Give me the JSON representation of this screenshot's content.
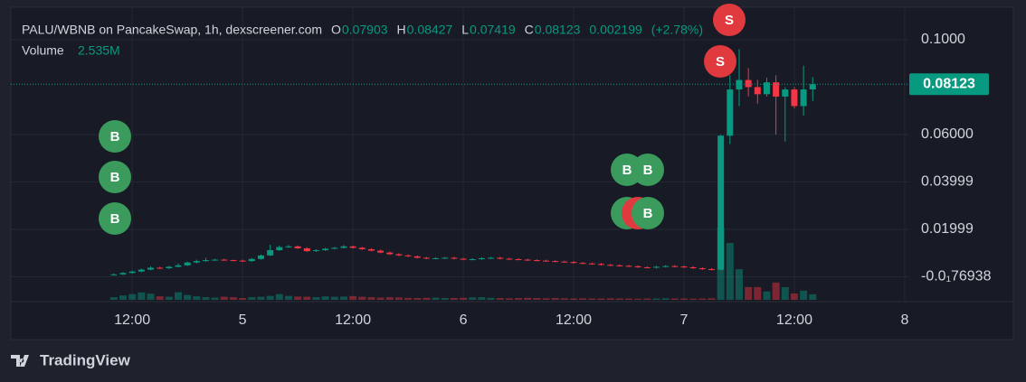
{
  "chart_data": {
    "type": "candlestick",
    "title": "PALU/WBNB on PancakeSwap, 1h, dexscreener.com",
    "ohlc_letters": [
      "O",
      "H",
      "L",
      "C"
    ],
    "change": 0.002199,
    "change_pct_label": "(+2.78%)",
    "up_color": "#089981",
    "down_color": "#f23645",
    "x": [
      -14,
      -13,
      -12,
      -11,
      -10,
      -9,
      -8,
      -7,
      -6,
      -5,
      -4,
      -3,
      -2,
      -1,
      0,
      1,
      2,
      3,
      4,
      5,
      6,
      7,
      8,
      9,
      10,
      11,
      12,
      13,
      14,
      15,
      16,
      17,
      18,
      19,
      20,
      21,
      22,
      23,
      24,
      25,
      26,
      27,
      28,
      29,
      30,
      31,
      32,
      33,
      34,
      35,
      36,
      37,
      38,
      39,
      40,
      41,
      42,
      43,
      44,
      45,
      46,
      47,
      48,
      49,
      50,
      51,
      52,
      53,
      54,
      55,
      56,
      57,
      58,
      59,
      60,
      61,
      62
    ],
    "ohlc": [
      [
        0.0008,
        0.0014,
        0.0005,
        0.001
      ],
      [
        0.001,
        0.002,
        0.0007,
        0.0016
      ],
      [
        0.0016,
        0.0026,
        0.0013,
        0.0022
      ],
      [
        0.0022,
        0.0034,
        0.0019,
        0.003
      ],
      [
        0.003,
        0.0044,
        0.0027,
        0.0038
      ],
      [
        0.0038,
        0.0042,
        0.0033,
        0.0036
      ],
      [
        0.0036,
        0.0046,
        0.0033,
        0.0042
      ],
      [
        0.0042,
        0.0056,
        0.0039,
        0.0048
      ],
      [
        0.0048,
        0.0064,
        0.0045,
        0.006
      ],
      [
        0.006,
        0.0072,
        0.0057,
        0.0066
      ],
      [
        0.0066,
        0.008,
        0.0063,
        0.007
      ],
      [
        0.007,
        0.0076,
        0.0067,
        0.0072
      ],
      [
        0.0072,
        0.0076,
        0.0067,
        0.007
      ],
      [
        0.007,
        0.0072,
        0.0065,
        0.0068
      ],
      [
        0.0068,
        0.0072,
        0.0063,
        0.0066
      ],
      [
        0.0066,
        0.0079,
        0.0063,
        0.0075
      ],
      [
        0.0075,
        0.0094,
        0.0072,
        0.009
      ],
      [
        0.009,
        0.0135,
        0.0087,
        0.0112
      ],
      [
        0.0112,
        0.0132,
        0.0109,
        0.0125
      ],
      [
        0.0125,
        0.0134,
        0.0122,
        0.0128
      ],
      [
        0.0128,
        0.0132,
        0.0117,
        0.012
      ],
      [
        0.012,
        0.0124,
        0.0105,
        0.0108
      ],
      [
        0.0108,
        0.0116,
        0.0105,
        0.0112
      ],
      [
        0.0112,
        0.0122,
        0.0109,
        0.0118
      ],
      [
        0.0118,
        0.0126,
        0.0115,
        0.0122
      ],
      [
        0.0122,
        0.0134,
        0.0119,
        0.0128
      ],
      [
        0.0128,
        0.0132,
        0.0119,
        0.0122
      ],
      [
        0.0122,
        0.0126,
        0.0113,
        0.0116
      ],
      [
        0.0116,
        0.012,
        0.0107,
        0.011
      ],
      [
        0.011,
        0.0114,
        0.0099,
        0.0102
      ],
      [
        0.0102,
        0.0106,
        0.0092,
        0.0095
      ],
      [
        0.0095,
        0.0099,
        0.0087,
        0.009
      ],
      [
        0.009,
        0.0094,
        0.0083,
        0.0086
      ],
      [
        0.0086,
        0.009,
        0.0077,
        0.008
      ],
      [
        0.008,
        0.0084,
        0.0074,
        0.0077
      ],
      [
        0.0077,
        0.0082,
        0.0074,
        0.0078
      ],
      [
        0.0078,
        0.0084,
        0.0075,
        0.008
      ],
      [
        0.008,
        0.0084,
        0.0073,
        0.0076
      ],
      [
        0.0076,
        0.008,
        0.0069,
        0.0072
      ],
      [
        0.0072,
        0.0078,
        0.0069,
        0.0074
      ],
      [
        0.0074,
        0.0082,
        0.0071,
        0.0078
      ],
      [
        0.0078,
        0.0084,
        0.0075,
        0.008
      ],
      [
        0.008,
        0.0084,
        0.0073,
        0.0076
      ],
      [
        0.0076,
        0.008,
        0.0071,
        0.0074
      ],
      [
        0.0074,
        0.0078,
        0.0069,
        0.0072
      ],
      [
        0.0072,
        0.0076,
        0.0067,
        0.007
      ],
      [
        0.007,
        0.0074,
        0.0065,
        0.0068
      ],
      [
        0.0068,
        0.0072,
        0.0063,
        0.0066
      ],
      [
        0.0066,
        0.007,
        0.0061,
        0.0064
      ],
      [
        0.0064,
        0.0068,
        0.0059,
        0.0062
      ],
      [
        0.0062,
        0.0066,
        0.0055,
        0.0058
      ],
      [
        0.0058,
        0.0062,
        0.0053,
        0.0056
      ],
      [
        0.0056,
        0.006,
        0.0051,
        0.0054
      ],
      [
        0.0054,
        0.0058,
        0.0047,
        0.005
      ],
      [
        0.005,
        0.0054,
        0.0045,
        0.0048
      ],
      [
        0.0048,
        0.0052,
        0.0043,
        0.0046
      ],
      [
        0.0046,
        0.005,
        0.0041,
        0.0044
      ],
      [
        0.0044,
        0.0048,
        0.0037,
        0.004
      ],
      [
        0.004,
        0.0044,
        0.0035,
        0.0038
      ],
      [
        0.0038,
        0.0046,
        0.0035,
        0.0042
      ],
      [
        0.0042,
        0.0049,
        0.0039,
        0.0045
      ],
      [
        0.0045,
        0.0049,
        0.004,
        0.0043
      ],
      [
        0.0043,
        0.0047,
        0.0037,
        0.004
      ],
      [
        0.004,
        0.0044,
        0.0033,
        0.0036
      ],
      [
        0.0036,
        0.004,
        0.0029,
        0.0032
      ],
      [
        0.0032,
        0.0036,
        0.0027,
        0.003
      ],
      [
        0.003,
        0.06,
        0.0028,
        0.0595
      ],
      [
        0.0595,
        0.085,
        0.056,
        0.079
      ],
      [
        0.079,
        0.096,
        0.072,
        0.083
      ],
      [
        0.083,
        0.088,
        0.076,
        0.08
      ],
      [
        0.08,
        0.083,
        0.073,
        0.077
      ],
      [
        0.077,
        0.084,
        0.076,
        0.082
      ],
      [
        0.082,
        0.085,
        0.06,
        0.076
      ],
      [
        0.076,
        0.08,
        0.057,
        0.079
      ],
      [
        0.079,
        0.08,
        0.071,
        0.072
      ],
      [
        0.072,
        0.089,
        0.068,
        0.079
      ],
      [
        0.07903,
        0.08427,
        0.07419,
        0.08123
      ]
    ],
    "volume": {
      "name": "Volume",
      "values": [
        1.2,
        2.0,
        2.6,
        3.4,
        2.8,
        1.6,
        1.4,
        3.5,
        2.2,
        1.6,
        1.2,
        1.0,
        1.4,
        1.2,
        0.8,
        1.2,
        1.4,
        1.8,
        2.6,
        1.8,
        1.5,
        1.4,
        1.2,
        1.6,
        1.4,
        1.5,
        1.7,
        1.4,
        1.2,
        1.0,
        1.2,
        1.1,
        0.9,
        0.8,
        0.9,
        1.0,
        0.8,
        0.8,
        0.9,
        1.1,
        1.2,
        0.9,
        0.8,
        0.7,
        0.8,
        0.9,
        0.8,
        0.7,
        0.8,
        0.7,
        0.6,
        0.7,
        0.6,
        0.6,
        0.7,
        0.6,
        0.6,
        0.5,
        0.6,
        0.6,
        0.7,
        0.6,
        0.6,
        0.5,
        0.6,
        0.7,
        33,
        26,
        14,
        5.8,
        5.8,
        3.8,
        7.9,
        5.8,
        2.9,
        4.2,
        2.535
      ],
      "last_value_label": "2.535M"
    },
    "xlim": [
      -25.2,
      72.5
    ],
    "xticks": [
      {
        "value": -12,
        "label": "12:00"
      },
      {
        "value": 0,
        "label": "5"
      },
      {
        "value": 12,
        "label": "12:00"
      },
      {
        "value": 24,
        "label": "6"
      },
      {
        "value": 36,
        "label": "12:00"
      },
      {
        "value": 48,
        "label": "7"
      },
      {
        "value": 60,
        "label": "12:00"
      },
      {
        "value": 72,
        "label": "8"
      }
    ],
    "ylim": [
      -0.0105,
      0.1137
    ],
    "yticks": [
      {
        "value": 0.1,
        "label": "0.1000"
      },
      {
        "value": 0.06,
        "label": "0.06000"
      },
      0.03999,
      0.01999,
      {
        "value": -7.6938e-06,
        "label": "-0.0₁76938"
      }
    ],
    "grid": true,
    "markers": [
      "B",
      "B",
      "B",
      "B",
      "B",
      "B",
      "B",
      "S",
      "S"
    ]
  },
  "footer": {
    "brand": "TradingView"
  }
}
